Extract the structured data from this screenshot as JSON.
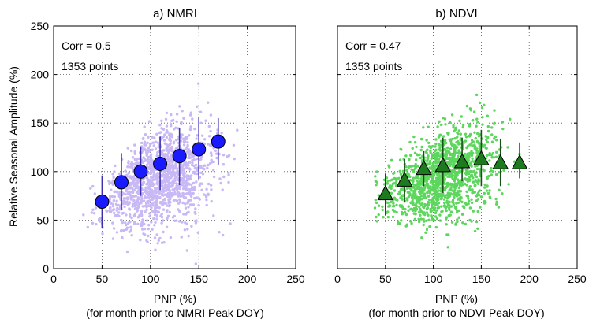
{
  "figure": {
    "ylabel": "Relative Seasonal Amplitude (%)"
  },
  "chart_data": [
    {
      "type": "scatter",
      "title": "a)  NMRI",
      "xlabel": "PNP (%)",
      "xlabel2": "(for month prior to NMRI Peak DOY)",
      "ylabel": "Relative Seasonal Amplitude (%)",
      "xlim": [
        0,
        250
      ],
      "ylim": [
        0,
        250
      ],
      "xticks": [
        0,
        50,
        100,
        150,
        200,
        250
      ],
      "yticks": [
        0,
        50,
        100,
        150,
        200,
        250
      ],
      "grid": true,
      "annotation_corr": "Corr = 0.5",
      "annotation_n": "1353 points",
      "colors": {
        "points": "#c8b8f5",
        "markers": "#1a1aff",
        "errorbars": "#3a2fb0"
      },
      "binned_means": [
        {
          "x": 50,
          "y": 69,
          "ylow": 42,
          "yhigh": 96
        },
        {
          "x": 70,
          "y": 89,
          "ylow": 60,
          "yhigh": 119
        },
        {
          "x": 90,
          "y": 100,
          "ylow": 75,
          "yhigh": 126
        },
        {
          "x": 110,
          "y": 108,
          "ylow": 81,
          "yhigh": 136
        },
        {
          "x": 130,
          "y": 116,
          "ylow": 86,
          "yhigh": 145
        },
        {
          "x": 150,
          "y": 123,
          "ylow": 92,
          "yhigh": 156
        },
        {
          "x": 170,
          "y": 131,
          "ylow": 107,
          "yhigh": 155
        }
      ]
    },
    {
      "type": "scatter",
      "title": "b)  NDVI",
      "xlabel": "PNP (%)",
      "xlabel2": "(for month prior to  NDVI Peak DOY)",
      "xlim": [
        0,
        250
      ],
      "ylim": [
        0,
        250
      ],
      "xticks": [
        0,
        50,
        100,
        150,
        200,
        250
      ],
      "yticks": [
        0,
        50,
        100,
        150,
        200,
        250
      ],
      "grid": true,
      "annotation_corr": "Corr = 0.47",
      "annotation_n": "1353 points",
      "colors": {
        "points": "#5cd65c",
        "markers": "#1e7a1e",
        "errorbars": "#155215"
      },
      "binned_means": [
        {
          "x": 50,
          "y": 77,
          "ylow": 55,
          "yhigh": 98
        },
        {
          "x": 70,
          "y": 91,
          "ylow": 68,
          "yhigh": 113
        },
        {
          "x": 90,
          "y": 103,
          "ylow": 85,
          "yhigh": 121
        },
        {
          "x": 110,
          "y": 106,
          "ylow": 78,
          "yhigh": 135
        },
        {
          "x": 130,
          "y": 110,
          "ylow": 90,
          "yhigh": 135
        },
        {
          "x": 150,
          "y": 113,
          "ylow": 85,
          "yhigh": 143
        },
        {
          "x": 170,
          "y": 109,
          "ylow": 85,
          "yhigh": 134
        },
        {
          "x": 190,
          "y": 109,
          "ylow": 93,
          "yhigh": 130
        }
      ]
    }
  ]
}
